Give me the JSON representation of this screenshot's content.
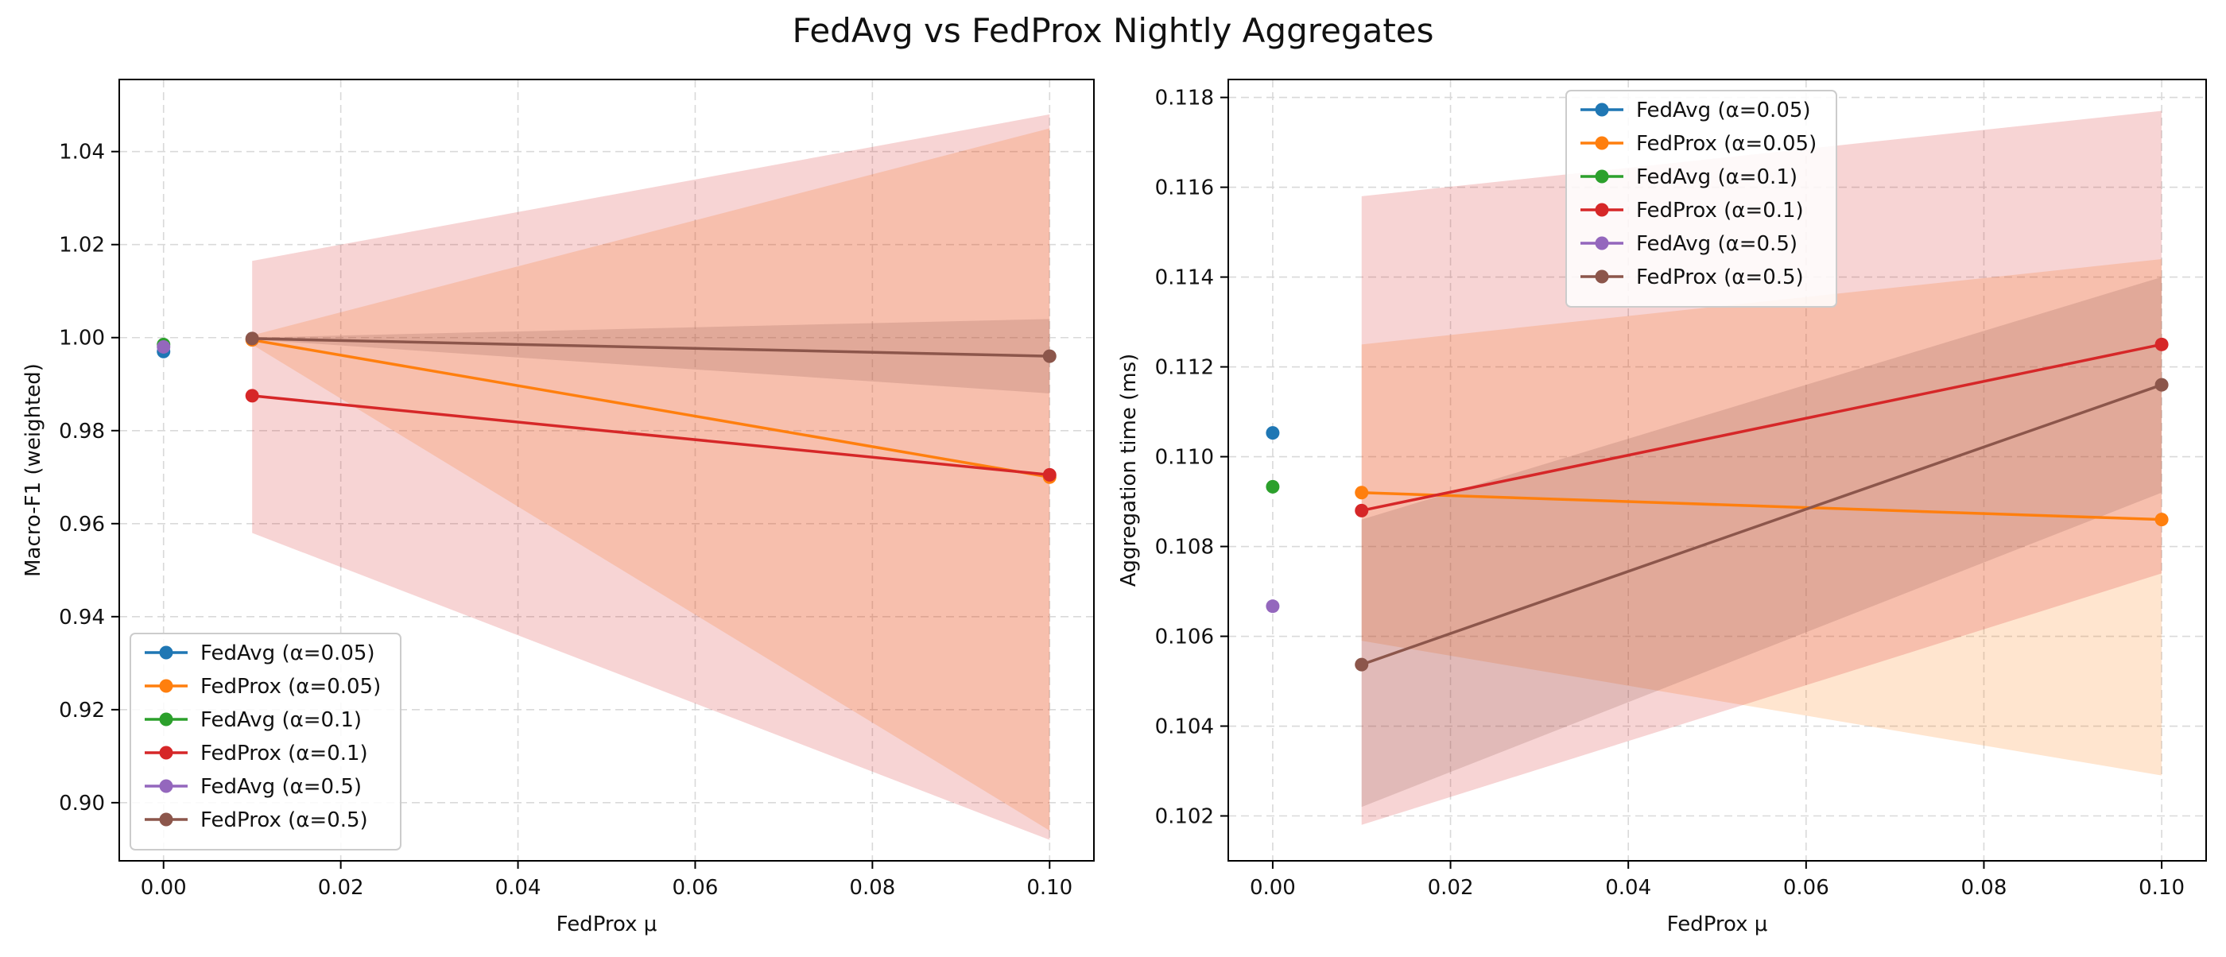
{
  "figure": {
    "title": "FedAvg vs FedProx Nightly Aggregates"
  },
  "colors": {
    "FedAvg (α=0.05)": "#1f77b4",
    "FedProx (α=0.05)": "#ff7f0e",
    "FedAvg (α=0.1)": "#2ca02c",
    "FedProx (α=0.1)": "#d62728",
    "FedAvg (α=0.5)": "#9467bd",
    "FedProx (α=0.5)": "#8c564b"
  },
  "chart_data": [
    {
      "type": "line",
      "title": "",
      "xlabel": "FedProx μ",
      "ylabel": "Macro-F1 (weighted)",
      "xlim": [
        -0.005,
        0.105
      ],
      "ylim": [
        0.8875,
        1.0555
      ],
      "xticks": [
        0.0,
        0.02,
        0.04,
        0.06,
        0.08,
        0.1
      ],
      "xtick_labels": [
        "0.00",
        "0.02",
        "0.04",
        "0.06",
        "0.08",
        "0.10"
      ],
      "yticks": [
        0.9,
        0.92,
        0.94,
        0.96,
        0.98,
        1.0,
        1.02,
        1.04
      ],
      "ytick_labels": [
        "0.90",
        "0.92",
        "0.94",
        "0.96",
        "0.98",
        "1.00",
        "1.02",
        "1.04"
      ],
      "grid": true,
      "legend": "lower-left",
      "series": [
        {
          "name": "FedAvg (α=0.05)",
          "x": [
            0.0
          ],
          "y": [
            0.997
          ],
          "band_low": null,
          "band_high": null
        },
        {
          "name": "FedProx (α=0.05)",
          "x": [
            0.01,
            0.1
          ],
          "y": [
            0.9995,
            0.97
          ],
          "band_low": [
            0.9985,
            0.894
          ],
          "band_high": [
            1.0005,
            1.045
          ]
        },
        {
          "name": "FedAvg (α=0.1)",
          "x": [
            0.0
          ],
          "y": [
            0.9985
          ],
          "band_low": null,
          "band_high": null
        },
        {
          "name": "FedProx (α=0.1)",
          "x": [
            0.01,
            0.1
          ],
          "y": [
            0.9875,
            0.9705
          ],
          "band_low": [
            0.958,
            0.892
          ],
          "band_high": [
            1.0165,
            1.048
          ]
        },
        {
          "name": "FedAvg (α=0.5)",
          "x": [
            0.0
          ],
          "y": [
            0.998
          ],
          "band_low": null,
          "band_high": null
        },
        {
          "name": "FedProx (α=0.5)",
          "x": [
            0.01,
            0.1
          ],
          "y": [
            0.9998,
            0.996
          ],
          "band_low": [
            0.9996,
            0.988
          ],
          "band_high": [
            1.0,
            1.004
          ]
        }
      ]
    },
    {
      "type": "line",
      "title": "",
      "xlabel": "FedProx μ",
      "ylabel": "Aggregation time (ms)",
      "xlim": [
        -0.005,
        0.105
      ],
      "ylim": [
        0.101,
        0.1184
      ],
      "xticks": [
        0.0,
        0.02,
        0.04,
        0.06,
        0.08,
        0.1
      ],
      "xtick_labels": [
        "0.00",
        "0.02",
        "0.04",
        "0.06",
        "0.08",
        "0.10"
      ],
      "yticks": [
        0.102,
        0.104,
        0.106,
        0.108,
        0.11,
        0.112,
        0.114,
        0.116,
        0.118
      ],
      "ytick_labels": [
        "0.102",
        "0.104",
        "0.106",
        "0.108",
        "0.110",
        "0.112",
        "0.114",
        "0.116",
        "0.118"
      ],
      "grid": true,
      "legend": "upper-center",
      "series": [
        {
          "name": "FedAvg (α=0.05)",
          "x": [
            0.0
          ],
          "y": [
            0.11053
          ],
          "band_low": null,
          "band_high": null
        },
        {
          "name": "FedProx (α=0.05)",
          "x": [
            0.01,
            0.1
          ],
          "y": [
            0.1092,
            0.1086
          ],
          "band_low": [
            0.1059,
            0.1029
          ],
          "band_high": [
            0.1125,
            0.1144
          ]
        },
        {
          "name": "FedAvg (α=0.1)",
          "x": [
            0.0
          ],
          "y": [
            0.10933
          ],
          "band_low": null,
          "band_high": null
        },
        {
          "name": "FedProx (α=0.1)",
          "x": [
            0.01,
            0.1
          ],
          "y": [
            0.1088,
            0.1125
          ],
          "band_low": [
            0.1018,
            0.1074
          ],
          "band_high": [
            0.1158,
            0.1177
          ]
        },
        {
          "name": "FedAvg (α=0.5)",
          "x": [
            0.0
          ],
          "y": [
            0.10667
          ],
          "band_low": null,
          "band_high": null
        },
        {
          "name": "FedProx (α=0.5)",
          "x": [
            0.01,
            0.1
          ],
          "y": [
            0.10537,
            0.1116
          ],
          "band_low": [
            0.1022,
            0.1092
          ],
          "band_high": [
            0.1086,
            0.114
          ]
        }
      ]
    }
  ]
}
